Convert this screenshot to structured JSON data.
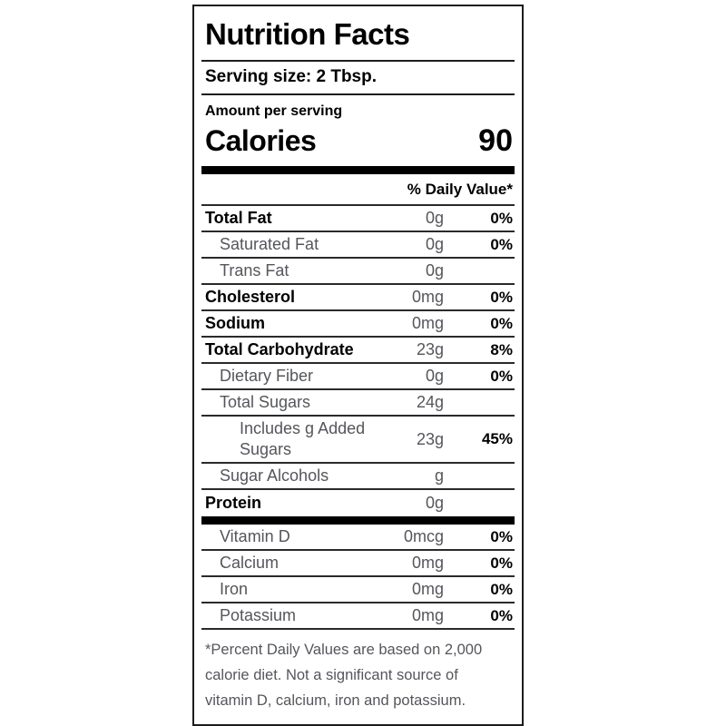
{
  "label": {
    "title": "Nutrition Facts",
    "serving_size": "Serving size: 2 Tbsp.",
    "amount_per_serving": "Amount per serving",
    "calories": {
      "label": "Calories",
      "value": "90"
    },
    "daily_value_header": "% Daily Value*",
    "rows": [
      {
        "name": "Total Fat",
        "amount": "0g",
        "dv": "0%"
      },
      {
        "name": "Saturated Fat",
        "amount": "0g",
        "dv": "0%"
      },
      {
        "name": "Trans Fat",
        "amount": "0g",
        "dv": ""
      },
      {
        "name": "Cholesterol",
        "amount": "0mg",
        "dv": "0%"
      },
      {
        "name": "Sodium",
        "amount": "0mg",
        "dv": "0%"
      },
      {
        "name": "Total Carbohydrate",
        "amount": "23g",
        "dv": "8%"
      },
      {
        "name": "Dietary Fiber",
        "amount": "0g",
        "dv": "0%"
      },
      {
        "name": "Total Sugars",
        "amount": "24g",
        "dv": ""
      },
      {
        "name": "Includes g Added Sugars",
        "amount": "23g",
        "dv": "45%"
      },
      {
        "name": "Sugar Alcohols",
        "amount": "g",
        "dv": ""
      },
      {
        "name": "Protein",
        "amount": "0g",
        "dv": ""
      }
    ],
    "micronutrients": [
      {
        "name": "Vitamin D",
        "amount": "0mcg",
        "dv": "0%"
      },
      {
        "name": "Calcium",
        "amount": "0mg",
        "dv": "0%"
      },
      {
        "name": "Iron",
        "amount": "0mg",
        "dv": "0%"
      },
      {
        "name": "Potassium",
        "amount": "0mg",
        "dv": "0%"
      }
    ],
    "footnote": "*Percent Daily Values are based on 2,000 calorie diet. Not a significant source of vitamin D, calcium, iron and potassium.",
    "colors": {
      "text_primary": "#000000",
      "text_secondary": "#54565b",
      "rule": "#2a2a2a"
    }
  }
}
